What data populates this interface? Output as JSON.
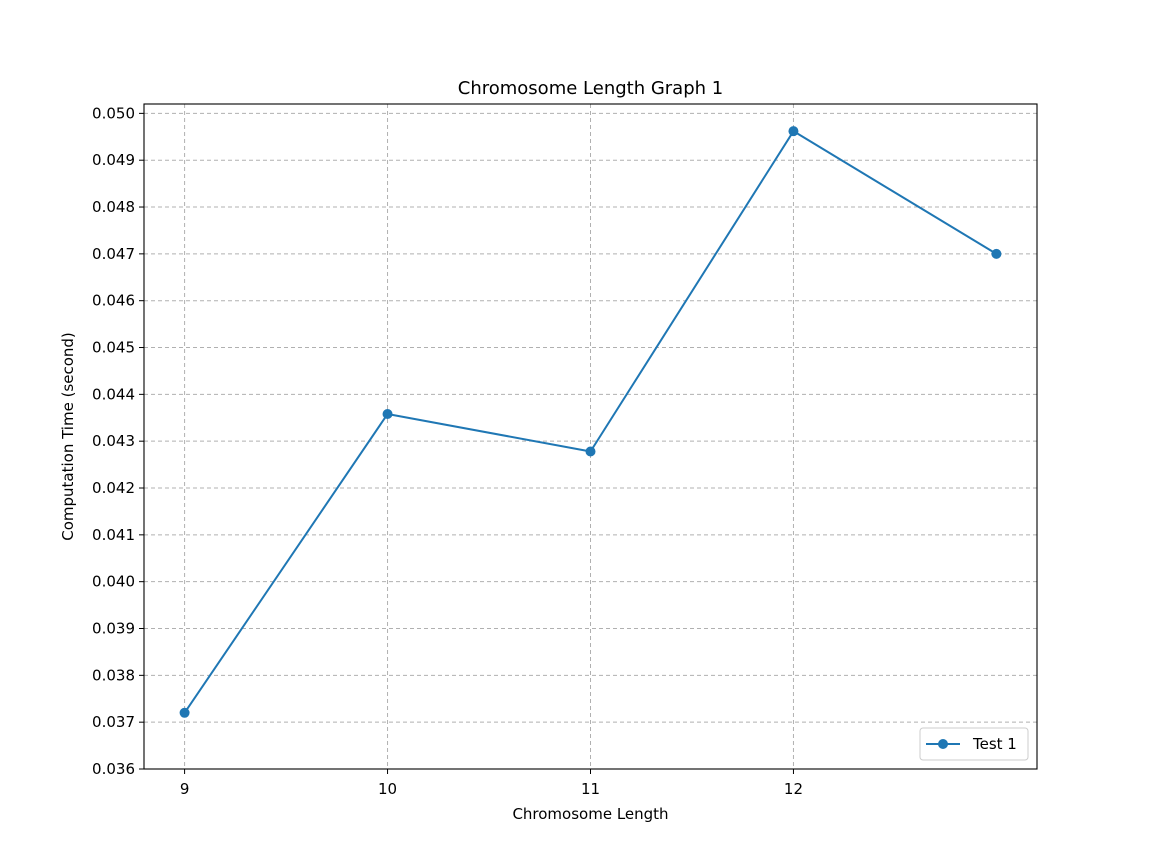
{
  "chart_data": {
    "type": "line",
    "title": "Chromosome Length Graph 1",
    "xlabel": "Chromosome Length",
    "ylabel": "Computation Time (second)",
    "x": [
      9,
      10,
      11,
      12,
      13
    ],
    "xlim": [
      8.8,
      13.2
    ],
    "ylim": [
      0.036,
      0.0502
    ],
    "xticks": [
      9,
      10,
      11,
      12
    ],
    "xtick_labels": [
      "9",
      "10",
      "11",
      "12"
    ],
    "yticks": [
      0.036,
      0.037,
      0.038,
      0.039,
      0.04,
      0.041,
      0.042,
      0.043,
      0.044,
      0.045,
      0.046,
      0.047,
      0.048,
      0.049,
      0.05
    ],
    "ytick_labels": [
      "0.036",
      "0.037",
      "0.038",
      "0.039",
      "0.040",
      "0.041",
      "0.042",
      "0.043",
      "0.044",
      "0.045",
      "0.046",
      "0.047",
      "0.048",
      "0.049",
      "0.050"
    ],
    "grid": true,
    "grid_style": "dashed",
    "legend_position": "lower-right",
    "series": [
      {
        "name": "Test 1",
        "values": [
          0.0372,
          0.04358,
          0.04278,
          0.04962,
          0.047
        ],
        "color": "#1f77b4",
        "marker": "circle"
      }
    ]
  }
}
